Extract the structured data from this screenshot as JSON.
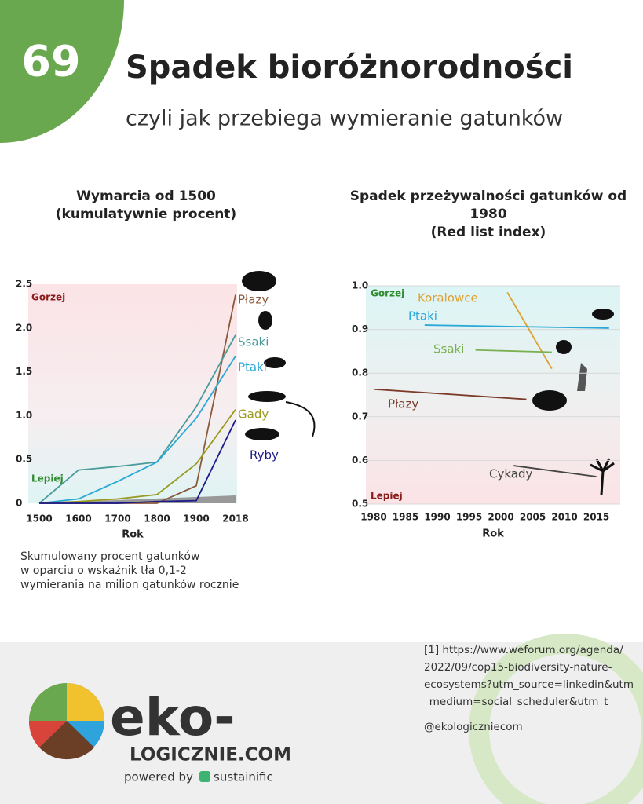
{
  "header": {
    "number": "69",
    "title": "Spadek bioróżnorodności",
    "subtitle": "czyli jak przebiega wymieranie gatunków"
  },
  "chart_data": [
    {
      "type": "line",
      "title": [
        "Wymarcia od 1500",
        "(kumulatywnie procent)"
      ],
      "categories": [
        "1500",
        "1600",
        "1700",
        "1800",
        "1900",
        "2018"
      ],
      "xlabel": "Rok",
      "ylim": [
        0,
        2.5
      ],
      "yticks": [
        0,
        0.5,
        {
          "value": 1,
          "label": "1.0"
        },
        1.5,
        {
          "value": 2,
          "label": "2.0"
        },
        2.5
      ],
      "grid": false,
      "annotations": [
        "Gorzej",
        "Lepiej"
      ],
      "series": [
        {
          "name": "Płazy",
          "color": "#8b5a3c",
          "values": [
            0,
            0,
            0,
            0,
            0.2,
            2.38
          ]
        },
        {
          "name": "Ssaki",
          "color": "#4a9a9a",
          "values": [
            0,
            0.38,
            0.42,
            0.47,
            1.1,
            1.92
          ]
        },
        {
          "name": "Ptaki",
          "color": "#2aa8d8",
          "values": [
            0,
            0.05,
            0.25,
            0.47,
            0.97,
            1.68
          ]
        },
        {
          "name": "Gady",
          "color": "#9a9a20",
          "values": [
            0,
            0.02,
            0.05,
            0.1,
            0.45,
            1.07
          ]
        },
        {
          "name": "Ryby",
          "color": "#1a1a8a",
          "values": [
            0,
            0,
            0,
            0.02,
            0.03,
            0.95
          ]
        }
      ],
      "note": [
        "Skumulowany procent gatunków",
        "w oparciu o wskaźnik tła 0,1-2",
        "wymierania na milion gatunków rocznie"
      ]
    },
    {
      "type": "line",
      "title": [
        "Spadek przeżywalności gatunków od",
        "1980",
        "(Red list index)"
      ],
      "xlabel": "Rok",
      "xlim": [
        1980,
        2019
      ],
      "xticks": [
        1980,
        1985,
        1990,
        1995,
        2000,
        2005,
        2010,
        2015
      ],
      "ylim": [
        0.5,
        1.0
      ],
      "yticks": [
        0.5,
        0.6,
        0.7,
        0.8,
        0.9,
        {
          "value": 1,
          "label": "1.0"
        }
      ],
      "grid": true,
      "annotations": [
        "Gorzej",
        "Lepiej"
      ],
      "series": [
        {
          "name": "Koralowce",
          "color": "#e0a030",
          "x": [
            2001,
            2008
          ],
          "values": [
            0.985,
            0.81
          ]
        },
        {
          "name": "Ptaki",
          "color": "#2aa8d8",
          "x": [
            1988,
            2017
          ],
          "values": [
            0.91,
            0.903
          ]
        },
        {
          "name": "Ssaki",
          "color": "#7ab050",
          "x": [
            1996,
            2008
          ],
          "values": [
            0.853,
            0.848
          ]
        },
        {
          "name": "Płazy",
          "color": "#7a3a2a",
          "x": [
            1980,
            2004
          ],
          "values": [
            0.763,
            0.74
          ]
        },
        {
          "name": "Cykady",
          "color": "#444444",
          "x": [
            2002,
            2015
          ],
          "values": [
            0.588,
            0.563
          ]
        }
      ]
    }
  ],
  "footer": {
    "reference": [
      "[1] https://www.weforum.org/agenda/",
      "2022/09/cop15-biodiversity-nature-",
      "ecosystems?utm_source=linkedin&utm",
      "_medium=social_scheduler&utm_t"
    ],
    "handle": "@ekologiczniecom",
    "logo_main": "eko-",
    "logo_sub": "LOGICZNIE.COM",
    "powered": "powered by",
    "brand": "sustainific"
  }
}
